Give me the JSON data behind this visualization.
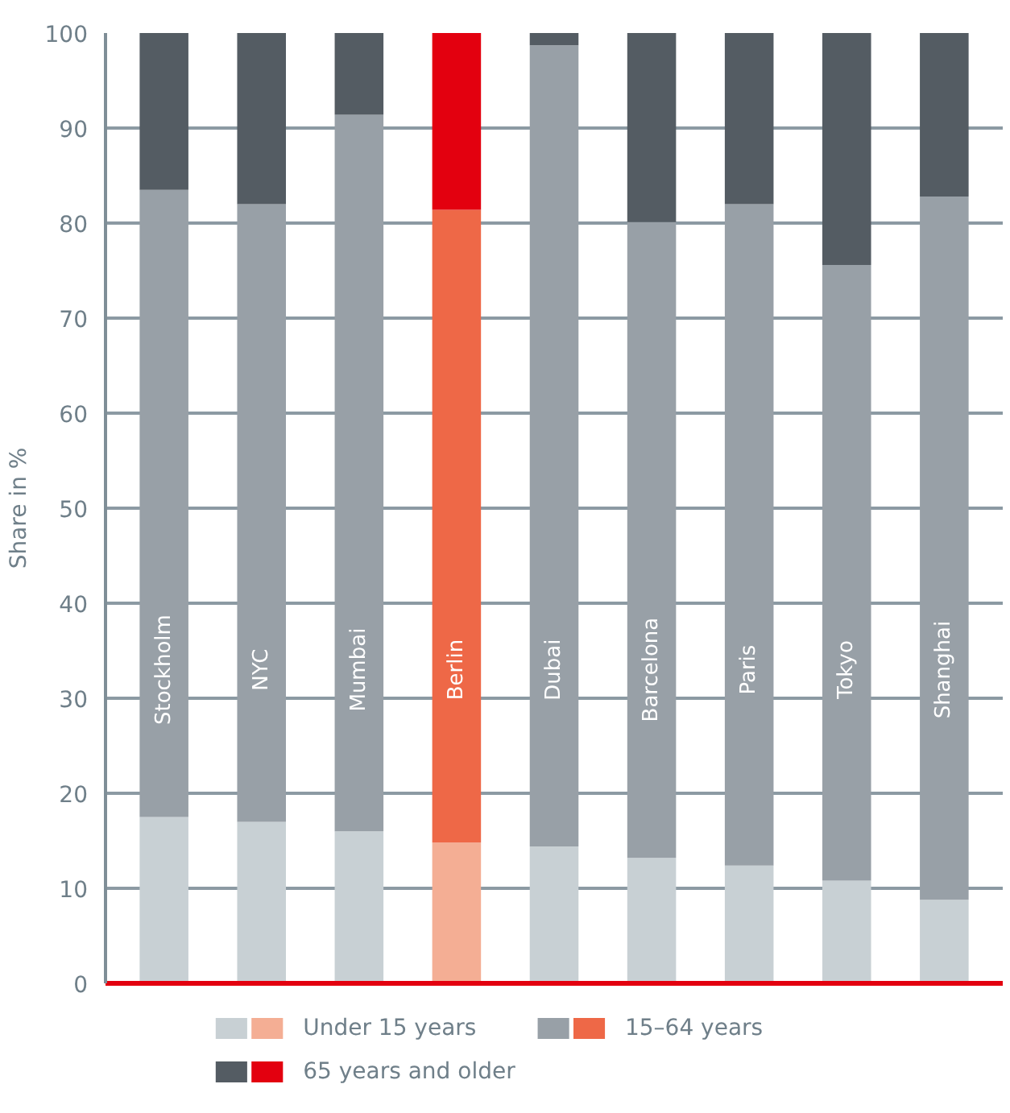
{
  "chart_data": {
    "type": "bar",
    "stacked": true,
    "ylabel": "Share in %",
    "categories": [
      "Stockholm",
      "NYC",
      "Mumbai",
      "Berlin",
      "Dubai",
      "Barcelona",
      "Paris",
      "Tokyo",
      "Shanghai"
    ],
    "series": [
      {
        "name": "Under 15 years",
        "colors": [
          "#c8d0d4",
          "#c8d0d4",
          "#c8d0d4",
          "#f4ae94",
          "#c8d0d4",
          "#c8d0d4",
          "#c8d0d4",
          "#c8d0d4",
          "#c8d0d4"
        ],
        "values": [
          17.5,
          17.0,
          16.0,
          14.8,
          14.4,
          13.2,
          12.4,
          10.8,
          8.8
        ]
      },
      {
        "name": "15–64 years",
        "colors": [
          "#98a0a7",
          "#98a0a7",
          "#98a0a7",
          "#ee6847",
          "#98a0a7",
          "#98a0a7",
          "#98a0a7",
          "#98a0a7",
          "#98a0a7"
        ],
        "values": [
          66.0,
          65.0,
          75.4,
          66.6,
          84.3,
          66.9,
          69.6,
          64.8,
          74.0
        ]
      },
      {
        "name": "65 years and older",
        "colors": [
          "#545c63",
          "#545c63",
          "#545c63",
          "#e3000f",
          "#545c63",
          "#545c63",
          "#545c63",
          "#545c63",
          "#545c63"
        ],
        "values": [
          16.5,
          18.0,
          8.6,
          18.6,
          1.3,
          19.9,
          18.0,
          24.4,
          17.2
        ]
      }
    ],
    "ylim": [
      0,
      100
    ],
    "yticks": [
      0,
      10,
      20,
      30,
      40,
      50,
      60,
      70,
      80,
      90,
      100
    ],
    "grid": "y",
    "legend": "bottom",
    "tick_labels": "y"
  }
}
